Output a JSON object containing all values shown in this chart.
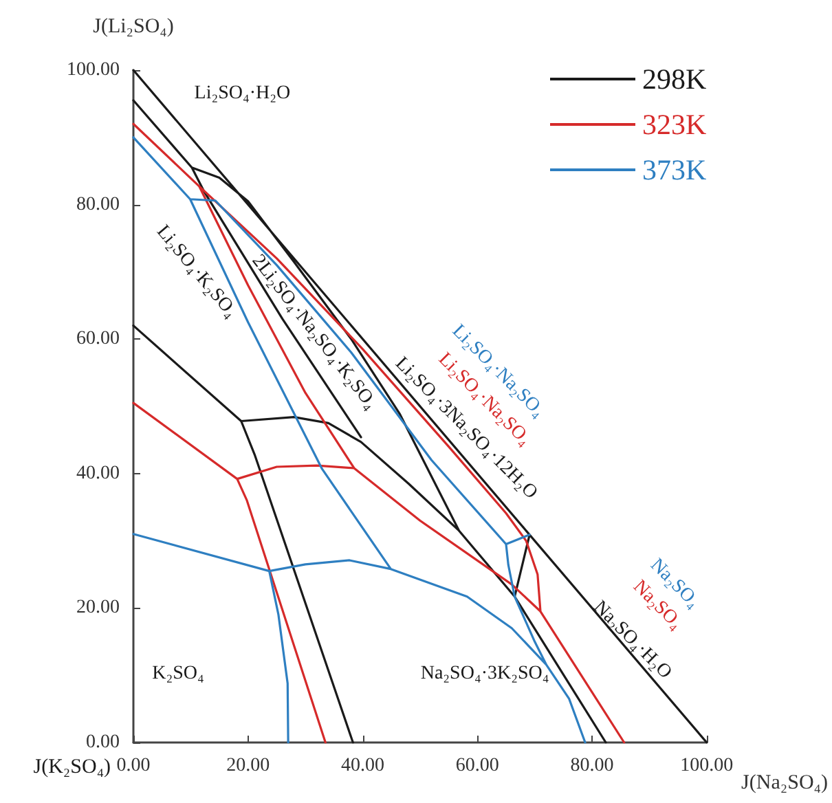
{
  "chart_data": {
    "type": "line",
    "ylabel": "J(Li₂SO₄)",
    "xlabel": "J(Na₂SO₄)",
    "xlim": [
      0,
      100
    ],
    "ylim": [
      0,
      100
    ],
    "xticks": [
      {
        "value": 0,
        "label": "0.00"
      },
      {
        "value": 20,
        "label": "20.00"
      },
      {
        "value": 40,
        "label": "40.00"
      },
      {
        "value": 60,
        "label": "60.00"
      },
      {
        "value": 80,
        "label": "80.00"
      },
      {
        "value": 100,
        "label": "100.00"
      }
    ],
    "yticks": [
      {
        "value": 0,
        "label": "0.00"
      },
      {
        "value": 20,
        "label": "20.00"
      },
      {
        "value": 40,
        "label": "40.00"
      },
      {
        "value": 60,
        "label": "60.00"
      },
      {
        "value": 80,
        "label": "80.00"
      },
      {
        "value": 100,
        "label": "100.00"
      }
    ],
    "grid": false,
    "legend": "top right",
    "marker": "none",
    "line_style": "solid",
    "series": [
      {
        "name": "298K",
        "color": "#1a1a1a",
        "x": [
          0,
          100,
          null,
          0,
          10.2,
          12.3,
          26,
          39.7,
          null,
          10.2,
          15,
          20,
          28,
          38,
          46.5,
          56.8,
          66.5,
          82.4,
          null,
          66.5,
          69.1,
          null,
          0,
          18.8,
          21.2,
          38.3,
          null,
          18.8,
          28,
          34,
          39.7,
          48,
          56.8
        ],
        "values": [
          100,
          0,
          null,
          95.5,
          85.5,
          82,
          63,
          45.4,
          null,
          85.5,
          84,
          80.5,
          71.5,
          60,
          48.8,
          31.5,
          21.7,
          0,
          null,
          21.7,
          30.9,
          null,
          62,
          47.8,
          42.7,
          0,
          null,
          47.8,
          48.4,
          47.5,
          44.7,
          38.5,
          31.5
        ]
      },
      {
        "name": "323K",
        "color": "#d62a2a",
        "x": [
          0,
          11.5,
          25,
          40,
          55,
          65,
          68.5,
          70.5,
          71,
          null,
          11.5,
          20,
          30,
          38.5,
          null,
          0,
          18.1,
          19.8,
          33.5,
          null,
          18.1,
          25,
          32,
          38.5,
          50,
          66,
          71,
          85.6
        ],
        "values": [
          92,
          82.7,
          72,
          58.5,
          44,
          34.1,
          30,
          25,
          19.5,
          null,
          82.7,
          68,
          52,
          40.8,
          null,
          50.5,
          39.2,
          36,
          0,
          null,
          39.2,
          41,
          41.2,
          40.8,
          33,
          23.5,
          19.5,
          0
        ]
      },
      {
        "name": "373K",
        "color": "#2e7fc1",
        "x": [
          0,
          9.9,
          14.3,
          25,
          38,
          52,
          65,
          69.1,
          null,
          9.9,
          20,
          32.9,
          44.9,
          null,
          0,
          23.7,
          30,
          37.7,
          44.9,
          58.2,
          66,
          72,
          76,
          78.8,
          null,
          23.7,
          25.3,
          26.9,
          27,
          null,
          65,
          65.4,
          66.5,
          70,
          72
        ],
        "values": [
          90,
          80.8,
          80.6,
          71,
          58,
          42,
          29.5,
          30.9,
          null,
          80.8,
          62.5,
          40.7,
          25.8,
          null,
          31,
          25.5,
          26.5,
          27.1,
          25.8,
          21.7,
          17,
          11.6,
          6.5,
          0,
          null,
          25.5,
          19,
          8.8,
          0,
          null,
          29.5,
          26.4,
          21.7,
          15,
          11.6
        ]
      }
    ],
    "annotations": [
      "Li₂SO₄·H₂O",
      "2Li₂SO₄·Na₂SO₄·K₂SO₄",
      "Li₂SO₄·K₂SO₄",
      "Li₂SO₄·3Na₂SO₄·12H₂O",
      "Li₂SO₄·Na₂SO₄",
      "Li₂SO₄·Na₂SO₄",
      "Na₂SO₄",
      "Na₂SO₄",
      "Na₂SO₄·H₂O",
      "K₂SO₄",
      "Na₂SO₄·3K₂SO₄",
      "J(K₂SO₄)"
    ]
  }
}
